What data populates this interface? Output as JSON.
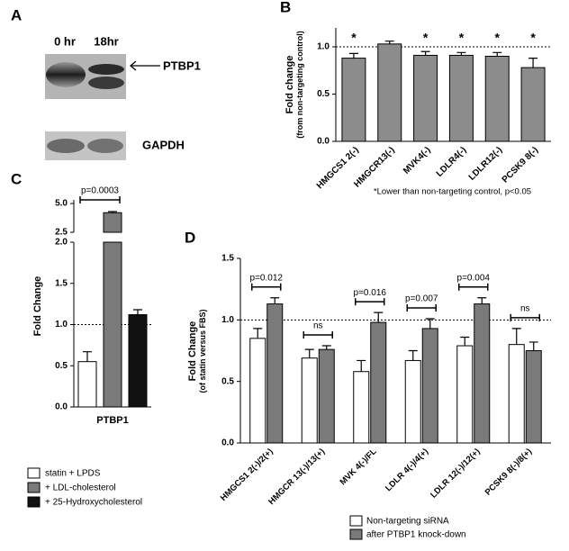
{
  "blot": {
    "panel": "A",
    "lanes": [
      "0 hr",
      "18hr"
    ],
    "bands": [
      "PTBP1",
      "GAPDH"
    ]
  },
  "chart_data": [
    {
      "type": "bar",
      "panel": "B",
      "ylabel": [
        "Fold change",
        "(from non-targeting control)"
      ],
      "categories": [
        "HMGCS1 2(-)",
        "HMGCR13(-)",
        "MVK4(-)",
        "LDLR4(-)",
        "LDLR12(-)",
        "PCSK9 8(-)"
      ],
      "series": [
        {
          "color": "#8c8c8c",
          "values": [
            0.88,
            1.03,
            0.91,
            0.91,
            0.9,
            0.78
          ],
          "errors": [
            0.05,
            0.03,
            0.04,
            0.03,
            0.04,
            0.1
          ]
        }
      ],
      "ylim": [
        0,
        1.2
      ],
      "yticks": [
        {
          "value": 0,
          "label": "0.0"
        },
        {
          "value": 0.5,
          "label": "0.5"
        },
        {
          "value": 1,
          "label": "1.0"
        }
      ],
      "refline": 1,
      "annotations": [
        {
          "text": "*",
          "category": "HMGCS1 2(-)"
        },
        {
          "text": "*",
          "category": "MVK4(-)"
        },
        {
          "text": "*",
          "category": "LDLR4(-)"
        },
        {
          "text": "*",
          "category": "LDLR12(-)"
        },
        {
          "text": "*",
          "category": "PCSK9 8(-)"
        }
      ],
      "footnote": "*Lower than non-targeting control, p<0.05"
    },
    {
      "type": "broken-bar",
      "panel": "C",
      "ylabel": [
        "Fold Change"
      ],
      "categories": [
        "PTBP1"
      ],
      "series": [
        {
          "name": "statin + LPDS",
          "color": "#ffffff",
          "values": [
            0.55
          ],
          "errors": [
            0.12
          ]
        },
        {
          "name": "+ LDL-cholesterol",
          "color": "#7a7a7a",
          "values": [
            4.2
          ],
          "errors": [
            0.1
          ]
        },
        {
          "name": "+ 25-Hydroxycholesterol",
          "color": "#111111",
          "values": [
            1.12
          ],
          "errors": [
            0.06
          ]
        }
      ],
      "ylim": [
        0,
        5
      ],
      "ybreak": [
        2,
        2.5
      ],
      "yticks": [
        {
          "value": 0,
          "label": "0.0"
        },
        {
          "value": 0.5,
          "label": "0.5"
        },
        {
          "value": 1,
          "label": "1.0"
        },
        {
          "value": 1.5,
          "label": "1.5"
        },
        {
          "value": 2,
          "label": "2.0"
        },
        {
          "value": 2.5,
          "label": "2.5"
        },
        {
          "value": 5,
          "label": "5.0"
        }
      ],
      "refline": 1,
      "annotations": [
        {
          "text": "p=0.0003",
          "series": [
            "statin + LPDS",
            "+ LDL-cholesterol"
          ]
        }
      ]
    },
    {
      "type": "grouped-bar",
      "panel": "D",
      "ylabel": [
        "Fold Change",
        "(of statin versus FBS)"
      ],
      "categories": [
        "HMGCS1 2(-)/2(+)",
        "HMGCR 13(-)/13(+)",
        "MVK 4(-)/FL",
        "LDLR 4(-)/4(+)",
        "LDLR 12(-)/12(+)",
        "PCSK9 8(-)/8(+)"
      ],
      "series": [
        {
          "name": "Non-targeting siRNA",
          "color": "#ffffff",
          "values": [
            0.85,
            0.69,
            0.58,
            0.67,
            0.79,
            0.8
          ],
          "errors": [
            0.08,
            0.07,
            0.09,
            0.08,
            0.07,
            0.13
          ]
        },
        {
          "name": "after PTBP1 knock-down",
          "color": "#7a7a7a",
          "values": [
            1.13,
            0.76,
            0.98,
            0.93,
            1.13,
            0.75
          ],
          "errors": [
            0.05,
            0.03,
            0.08,
            0.08,
            0.05,
            0.07
          ]
        }
      ],
      "ylim": [
        0,
        1.5
      ],
      "yticks": [
        {
          "value": 0,
          "label": "0.0"
        },
        {
          "value": 0.5,
          "label": "0.5"
        },
        {
          "value": 1,
          "label": "1.0"
        },
        {
          "value": 1.5,
          "label": "1.5"
        }
      ],
      "refline": 1,
      "annotations": [
        {
          "text": "p=0.012",
          "category": "HMGCS1 2(-)/2(+)"
        },
        {
          "text": "ns",
          "category": "HMGCR 13(-)/13(+)"
        },
        {
          "text": "p=0.016",
          "category": "MVK 4(-)/FL"
        },
        {
          "text": "p=0.007",
          "category": "LDLR 4(-)/4(+)"
        },
        {
          "text": "p=0.004",
          "category": "LDLR 12(-)/12(+)"
        },
        {
          "text": "ns",
          "category": "PCSK9 8(-)/8(+)"
        }
      ]
    }
  ]
}
